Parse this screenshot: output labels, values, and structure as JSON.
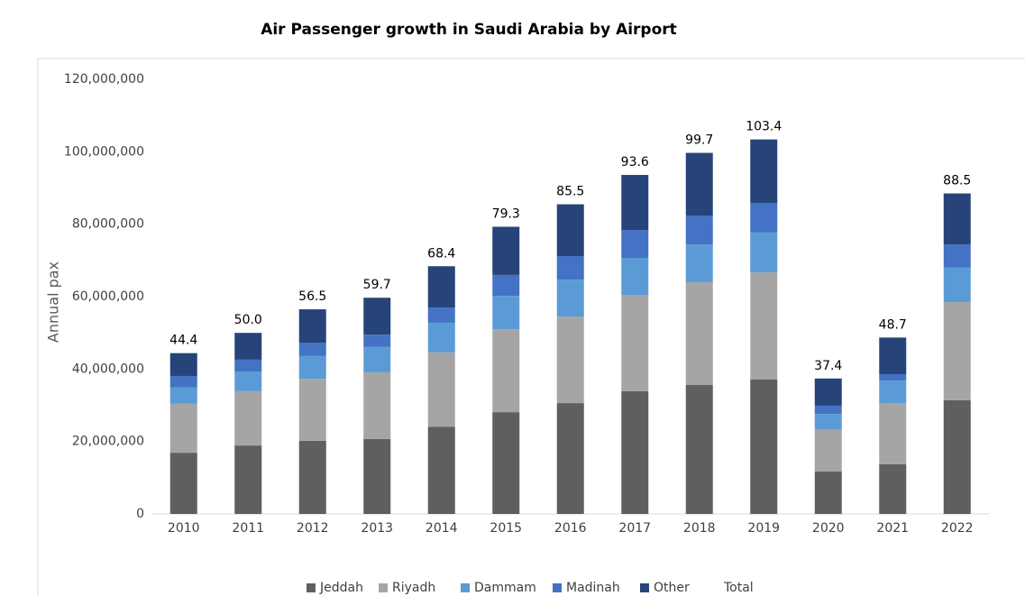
{
  "chart_data": {
    "type": "stacked_bar",
    "title": "Air Passenger growth in Saudi Arabia by Airport",
    "y_label": "Annual pax",
    "categories": [
      "2010",
      "2011",
      "2012",
      "2013",
      "2014",
      "2015",
      "2016",
      "2017",
      "2018",
      "2019",
      "2020",
      "2021",
      "2022"
    ],
    "series": [
      {
        "name": "Jeddah",
        "color": "#5f5f5f",
        "values": [
          16900000,
          18900000,
          20200000,
          20700000,
          24100000,
          28100000,
          30600000,
          33900000,
          35600000,
          37100000,
          11700000,
          13700000,
          31400000
        ]
      },
      {
        "name": "Riyadh",
        "color": "#a5a5a5",
        "values": [
          13500000,
          15000000,
          17100000,
          18400000,
          20500000,
          22900000,
          23900000,
          26600000,
          28400000,
          29600000,
          11700000,
          16900000,
          27100000
        ]
      },
      {
        "name": "Dammam",
        "color": "#5b9bd5",
        "values": [
          4500000,
          5400000,
          6300000,
          7000000,
          8200000,
          9200000,
          10200000,
          10200000,
          10400000,
          11000000,
          4200000,
          6200000,
          9500000
        ]
      },
      {
        "name": "Madinah",
        "color": "#4472c4",
        "values": [
          3200000,
          3300000,
          3700000,
          3400000,
          4200000,
          5800000,
          6500000,
          7700000,
          8000000,
          8200000,
          2300000,
          1800000,
          6400000
        ]
      },
      {
        "name": "Other",
        "color": "#264478",
        "values": [
          6300000,
          7400000,
          9200000,
          10200000,
          11400000,
          13300000,
          14300000,
          15200000,
          17300000,
          17500000,
          7500000,
          10100000,
          14100000
        ]
      }
    ],
    "totals": {
      "name": "Total",
      "values": [
        44400000,
        50000000,
        56500000,
        59700000,
        68400000,
        79300000,
        85500000,
        93600000,
        99700000,
        103400000,
        37400000,
        48700000,
        88500000
      ],
      "value_labels": [
        "44.4",
        "50.0",
        "56.5",
        "59.7",
        "68.4",
        "79.3",
        "85.5",
        "93.6",
        "99.7",
        "103.4",
        "37.4",
        "48.7",
        "88.5"
      ]
    },
    "ylim": [
      0,
      120000000
    ],
    "yticks": [
      0,
      {
        "value": 20000000,
        "label": "20,000,000"
      },
      {
        "value": 40000000,
        "label": "40,000,000"
      },
      {
        "value": 60000000,
        "label": "60,000,000"
      },
      {
        "value": 80000000,
        "label": "80,000,000"
      },
      {
        "value": 100000000,
        "label": "100,000,000"
      },
      {
        "value": 120000000,
        "label": "120,000,000"
      }
    ],
    "grid": false,
    "legend": "bottom"
  }
}
